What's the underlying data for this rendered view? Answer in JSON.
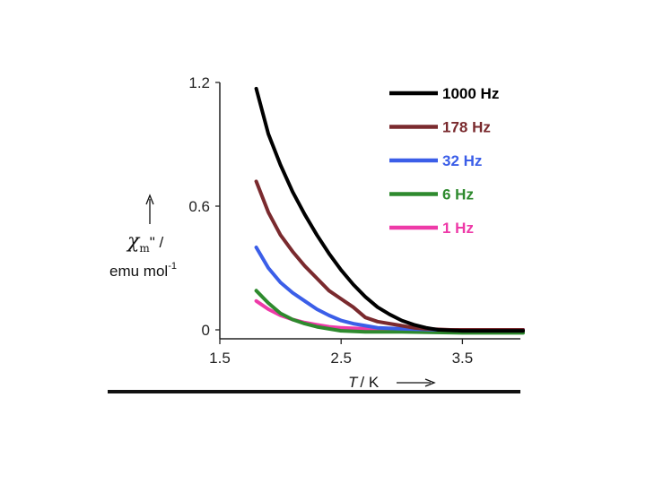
{
  "chart_data": {
    "type": "line",
    "xlabel": {
      "var": "T",
      "unit": "/ K"
    },
    "ylabel": {
      "symbol": "χ",
      "subscript": "m",
      "suffix": "\" /",
      "line2": "emu mol",
      "line2_sup": "-1"
    },
    "xlim": [
      1.5,
      4.0
    ],
    "ylim": [
      0,
      1.2
    ],
    "xticks": [
      "1.5",
      "2.5",
      "3.5"
    ],
    "xtick_values": [
      1.5,
      2.5,
      3.5
    ],
    "yticks": [
      "0",
      "0.6",
      "1.2"
    ],
    "ytick_values": [
      0,
      0.6,
      1.2
    ],
    "legend_position": "top-right",
    "series": [
      {
        "name": "1000 Hz",
        "color": "#000000",
        "points": [
          [
            1.8,
            1.17
          ],
          [
            1.9,
            0.95
          ],
          [
            2.0,
            0.8
          ],
          [
            2.1,
            0.67
          ],
          [
            2.2,
            0.56
          ],
          [
            2.3,
            0.46
          ],
          [
            2.4,
            0.37
          ],
          [
            2.5,
            0.29
          ],
          [
            2.6,
            0.22
          ],
          [
            2.7,
            0.16
          ],
          [
            2.8,
            0.11
          ],
          [
            2.9,
            0.075
          ],
          [
            3.0,
            0.045
          ],
          [
            3.1,
            0.025
          ],
          [
            3.2,
            0.01
          ],
          [
            3.3,
            0.0
          ],
          [
            3.5,
            -0.005
          ],
          [
            3.7,
            -0.005
          ],
          [
            4.0,
            -0.005
          ]
        ]
      },
      {
        "name": "178 Hz",
        "color": "#7a2a2e",
        "points": [
          [
            1.8,
            0.72
          ],
          [
            1.9,
            0.57
          ],
          [
            2.0,
            0.46
          ],
          [
            2.1,
            0.38
          ],
          [
            2.2,
            0.31
          ],
          [
            2.3,
            0.25
          ],
          [
            2.4,
            0.19
          ],
          [
            2.5,
            0.15
          ],
          [
            2.6,
            0.11
          ],
          [
            2.7,
            0.06
          ],
          [
            2.8,
            0.04
          ],
          [
            2.9,
            0.03
          ],
          [
            3.0,
            0.02
          ],
          [
            3.1,
            0.01
          ],
          [
            3.2,
            0.005
          ],
          [
            3.4,
            0.0
          ],
          [
            3.7,
            0.0
          ],
          [
            4.0,
            0.0
          ]
        ]
      },
      {
        "name": "32 Hz",
        "color": "#3b5ee8",
        "points": [
          [
            1.8,
            0.4
          ],
          [
            1.9,
            0.3
          ],
          [
            2.0,
            0.23
          ],
          [
            2.1,
            0.18
          ],
          [
            2.2,
            0.14
          ],
          [
            2.3,
            0.1
          ],
          [
            2.4,
            0.07
          ],
          [
            2.5,
            0.045
          ],
          [
            2.6,
            0.03
          ],
          [
            2.7,
            0.02
          ],
          [
            2.8,
            0.01
          ],
          [
            3.0,
            0.005
          ],
          [
            3.3,
            0.0
          ],
          [
            3.7,
            0.0
          ],
          [
            4.0,
            0.0
          ]
        ]
      },
      {
        "name": "6 Hz",
        "color": "#2e8a2e",
        "points": [
          [
            1.8,
            0.19
          ],
          [
            1.9,
            0.13
          ],
          [
            2.0,
            0.08
          ],
          [
            2.1,
            0.05
          ],
          [
            2.2,
            0.03
          ],
          [
            2.3,
            0.015
          ],
          [
            2.4,
            0.005
          ],
          [
            2.5,
            -0.005
          ],
          [
            2.7,
            -0.01
          ],
          [
            3.0,
            -0.01
          ],
          [
            3.5,
            -0.015
          ],
          [
            4.0,
            -0.015
          ]
        ]
      },
      {
        "name": "1 Hz",
        "color": "#ee3aa8",
        "points": [
          [
            1.8,
            0.14
          ],
          [
            1.9,
            0.1
          ],
          [
            2.0,
            0.07
          ],
          [
            2.1,
            0.05
          ],
          [
            2.2,
            0.035
          ],
          [
            2.3,
            0.025
          ],
          [
            2.4,
            0.015
          ],
          [
            2.5,
            0.01
          ],
          [
            2.7,
            0.005
          ],
          [
            3.0,
            0.0
          ],
          [
            3.5,
            0.0
          ],
          [
            4.0,
            0.0
          ]
        ]
      }
    ]
  }
}
